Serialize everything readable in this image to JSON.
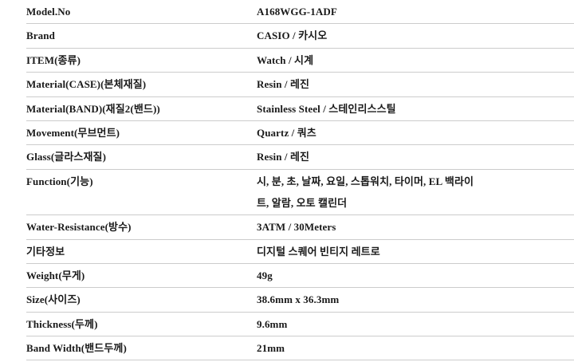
{
  "theme": {
    "background": "#ffffff",
    "divider": "#cccccc",
    "text": "#1a1a1a"
  },
  "spec_table": {
    "rows": [
      {
        "label": "Model.No",
        "value": "A168WGG-1ADF"
      },
      {
        "label": "Brand",
        "value": "CASIO / 카시오"
      },
      {
        "label": "ITEM(종류)",
        "value": "Watch / 시계"
      },
      {
        "label": "Material(CASE)(본체재질)",
        "value": "Resin / 레진"
      },
      {
        "label": "Material(BAND)(재질2(밴드))",
        "value": "Stainless Steel / 스테인리스스틸"
      },
      {
        "label": "Movement(무브먼트)",
        "value": "Quartz / 쿼츠"
      },
      {
        "label": "Glass(글라스재질)",
        "value": "Resin / 레진"
      },
      {
        "label": "Function(기능)",
        "value": "시, 분, 초, 날짜, 요일, 스톱워치, 타이머, EL 백라이트, 알람, 오토 캘린더"
      },
      {
        "label": "Water-Resistance(방수)",
        "value": "3ATM / 30Meters"
      },
      {
        "label": "기타정보",
        "value": "디지털 스퀘어 빈티지 레트로"
      },
      {
        "label": "Weight(무게)",
        "value": "49g"
      },
      {
        "label": "Size(사이즈)",
        "value": "38.6mm x 36.3mm"
      },
      {
        "label": "Thickness(두께)",
        "value": "9.6mm"
      },
      {
        "label": "Band Width(밴드두께)",
        "value": "21mm"
      }
    ]
  }
}
